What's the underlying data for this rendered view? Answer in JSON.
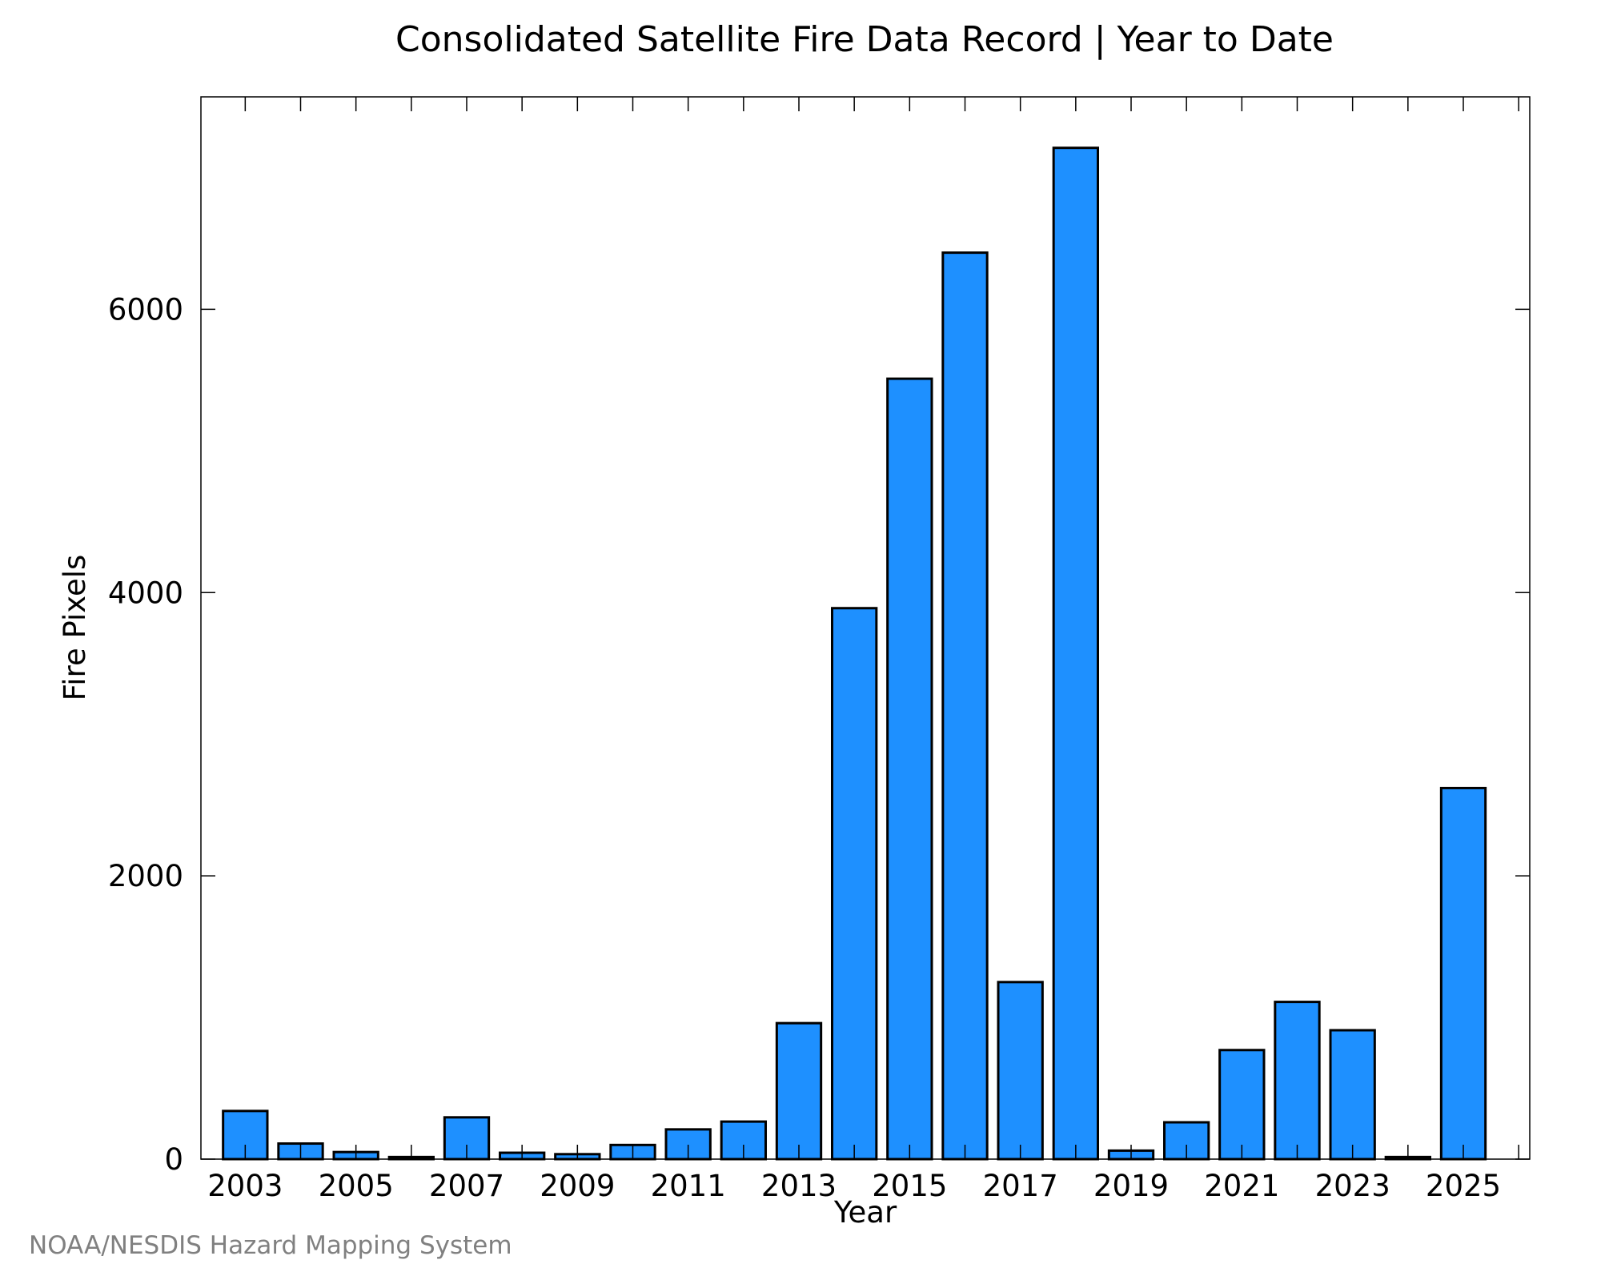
{
  "chart_data": {
    "type": "bar",
    "title": "Consolidated Satellite Fire Data Record | Year to Date",
    "xlabel": "Year",
    "ylabel": "Fire Pixels",
    "categories": [
      2003,
      2004,
      2005,
      2006,
      2007,
      2008,
      2009,
      2010,
      2011,
      2012,
      2013,
      2014,
      2015,
      2016,
      2017,
      2018,
      2019,
      2020,
      2021,
      2022,
      2023,
      2024,
      2025
    ],
    "values": [
      340,
      110,
      50,
      15,
      295,
      45,
      35,
      100,
      210,
      265,
      960,
      3890,
      5510,
      6400,
      1250,
      7140,
      60,
      260,
      770,
      1110,
      910,
      15,
      2620
    ],
    "xticks": [
      "2003",
      "2005",
      "2007",
      "2009",
      "2011",
      "2013",
      "2015",
      "2017",
      "2019",
      "2021",
      "2023",
      "2025"
    ],
    "yticks": [
      "0",
      "2000",
      "4000",
      "6000"
    ],
    "ylim": [
      0,
      7500
    ],
    "xlim": [
      2002.2,
      2026.2
    ],
    "grid": false,
    "legend": "none",
    "bar_color": "#1e90ff",
    "edge_color": "#000000"
  },
  "footer": {
    "credit": "NOAA/NESDIS Hazard Mapping System"
  }
}
